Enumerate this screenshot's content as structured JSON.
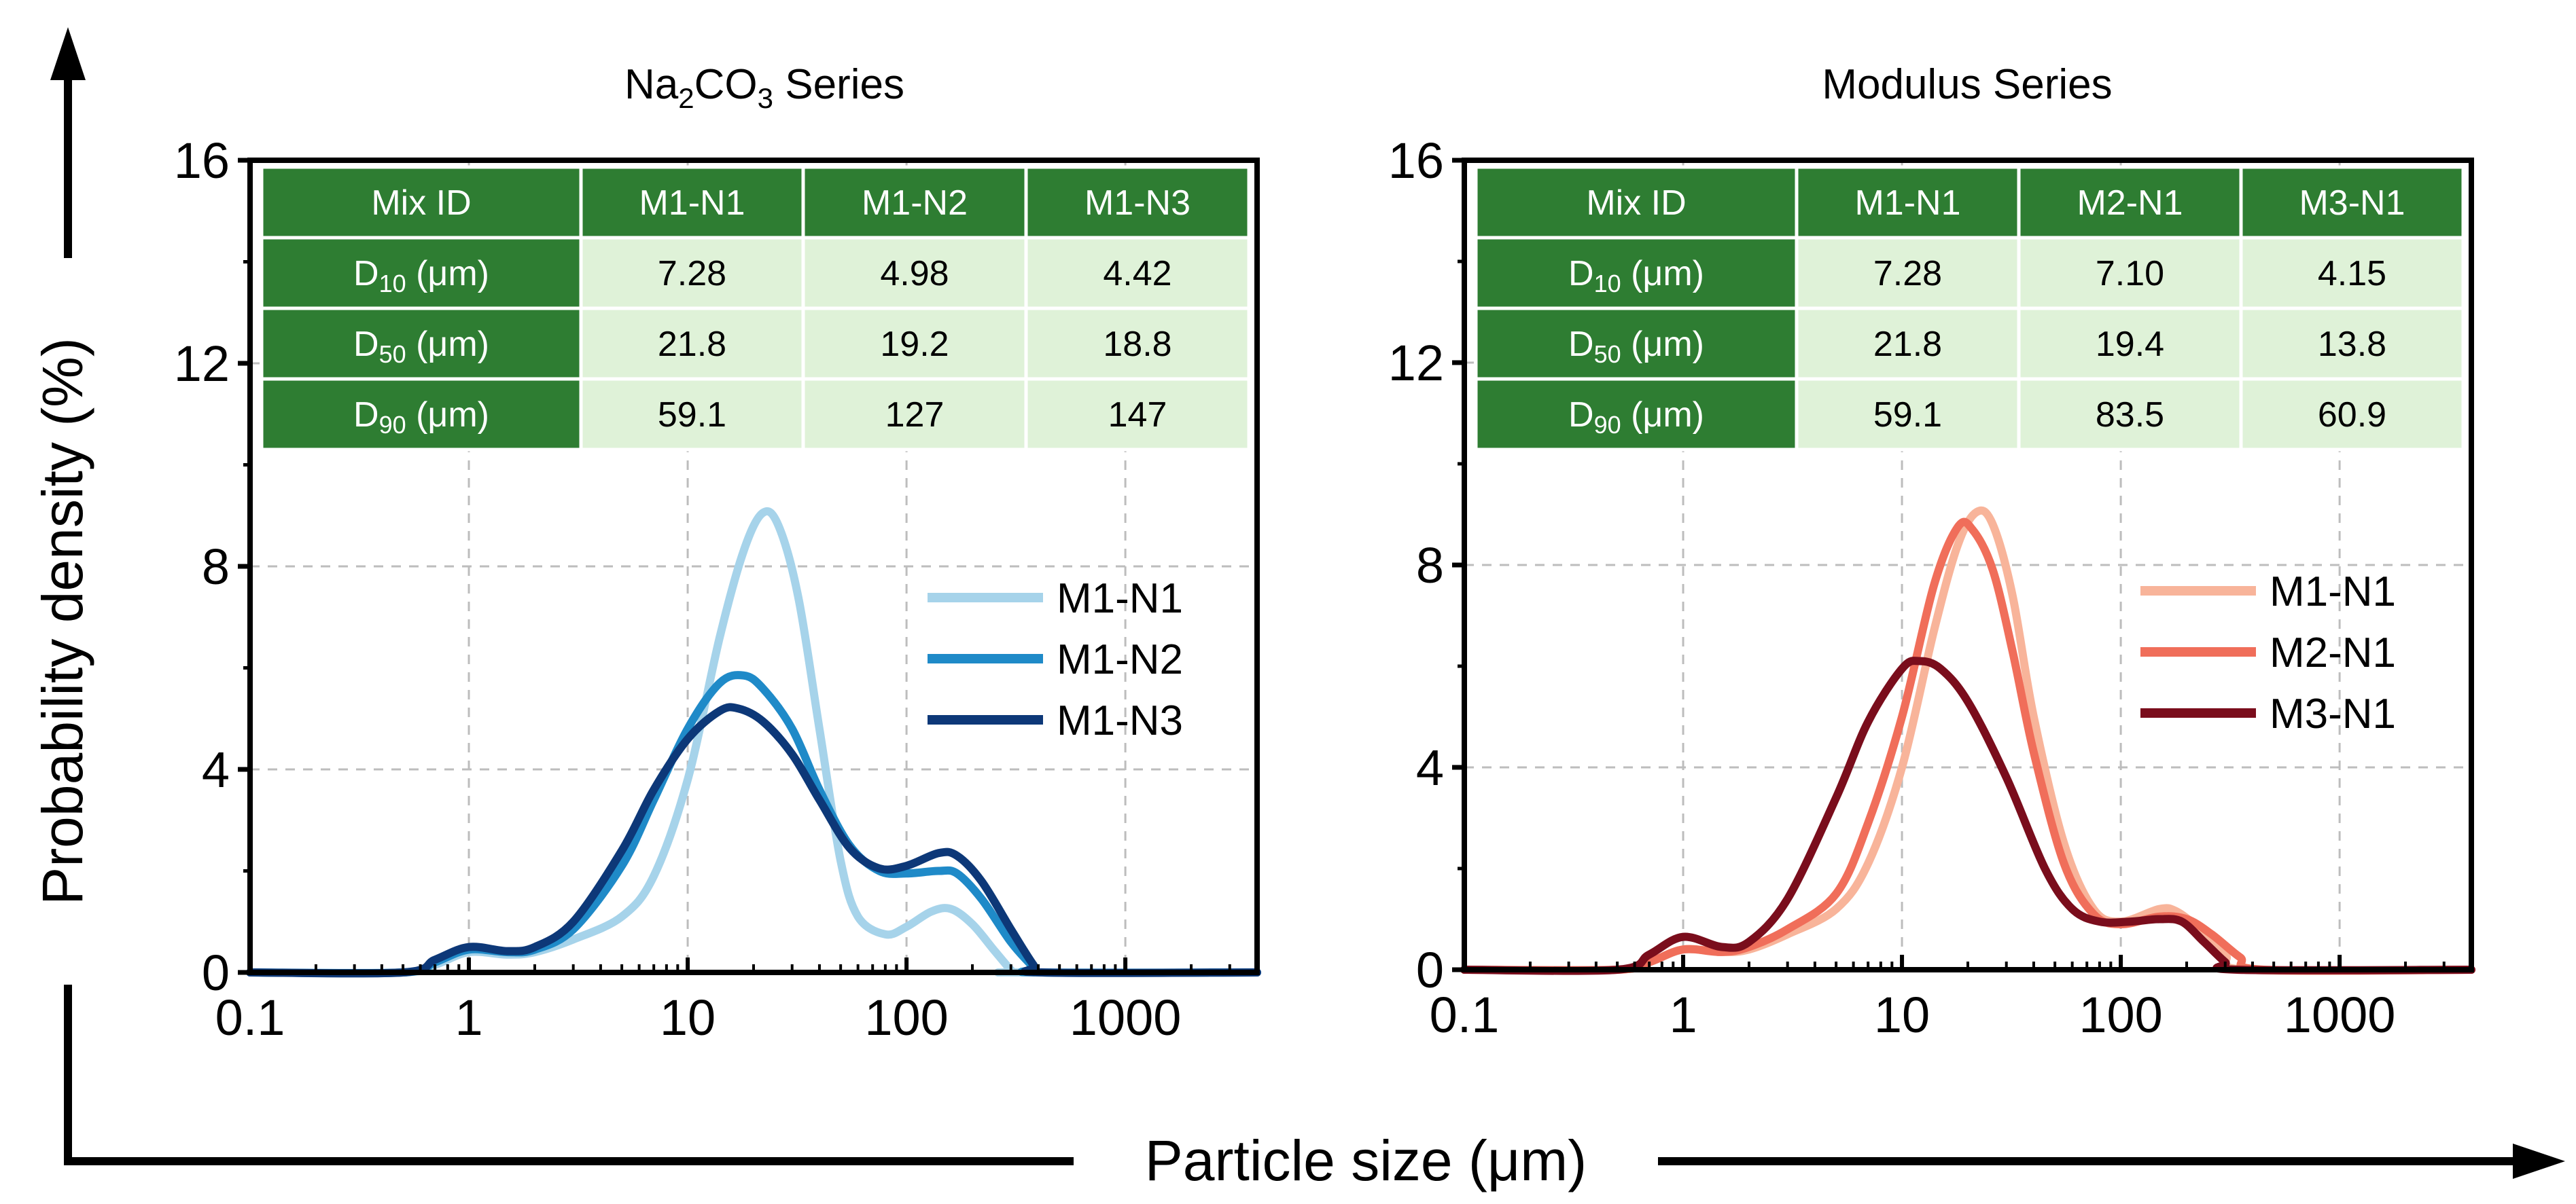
{
  "figure": {
    "y_axis_title": "Probability density (%)",
    "x_axis_title": "Particle size (μm)"
  },
  "colors": {
    "table_header_bg": "#2e7d32",
    "table_body_bg": "#dff2d8",
    "grid": "#bdbdbd"
  },
  "chart_data": [
    {
      "type": "line",
      "title": "Na2CO3 Series",
      "title_parts": {
        "prefix": "Na",
        "sub1": "2",
        "mid": "CO",
        "sub2": "3",
        "suffix": " Series"
      },
      "x_scale": "log",
      "xlim": [
        0.1,
        4000
      ],
      "ylim": [
        0,
        16
      ],
      "x_ticks": [
        "0.1",
        "1",
        "10",
        "100",
        "1000"
      ],
      "y_ticks": [
        "0",
        "4",
        "8",
        "12",
        "16"
      ],
      "grid": true,
      "legend_position": "right",
      "table": {
        "header": [
          "Mix ID",
          "M1-N1",
          "M1-N2",
          "M1-N3"
        ],
        "rows": [
          {
            "label_main": "D",
            "label_sub": "10",
            "label_unit": " (μm)",
            "values": [
              "7.28",
              "4.98",
              "4.42"
            ]
          },
          {
            "label_main": "D",
            "label_sub": "50",
            "label_unit": " (μm)",
            "values": [
              "21.8",
              "19.2",
              "18.8"
            ]
          },
          {
            "label_main": "D",
            "label_sub": "90",
            "label_unit": " (μm)",
            "values": [
              "59.1",
              "127",
              "147"
            ]
          }
        ]
      },
      "series": [
        {
          "name": "M1-N1",
          "color": "#a6d3ea",
          "points": [
            [
              0.1,
              0
            ],
            [
              0.5,
              0
            ],
            [
              0.7,
              0.15
            ],
            [
              1,
              0.4
            ],
            [
              1.5,
              0.35
            ],
            [
              2,
              0.4
            ],
            [
              3,
              0.65
            ],
            [
              5,
              1.1
            ],
            [
              7,
              1.9
            ],
            [
              10,
              3.8
            ],
            [
              14,
              6.6
            ],
            [
              18,
              8.3
            ],
            [
              22,
              9.05
            ],
            [
              26,
              8.8
            ],
            [
              32,
              7.4
            ],
            [
              40,
              4.8
            ],
            [
              50,
              2.2
            ],
            [
              60,
              1.1
            ],
            [
              80,
              0.75
            ],
            [
              100,
              0.9
            ],
            [
              130,
              1.2
            ],
            [
              160,
              1.25
            ],
            [
              200,
              0.95
            ],
            [
              250,
              0.45
            ],
            [
              300,
              0.05
            ],
            [
              320,
              0
            ],
            [
              4000,
              0
            ]
          ]
        },
        {
          "name": "M1-N2",
          "color": "#1f8ac8",
          "points": [
            [
              0.1,
              0
            ],
            [
              0.5,
              0
            ],
            [
              0.7,
              0.2
            ],
            [
              1,
              0.45
            ],
            [
              1.5,
              0.4
            ],
            [
              2,
              0.45
            ],
            [
              3,
              0.85
            ],
            [
              5,
              2.1
            ],
            [
              7,
              3.4
            ],
            [
              10,
              4.8
            ],
            [
              14,
              5.7
            ],
            [
              18,
              5.85
            ],
            [
              22,
              5.6
            ],
            [
              30,
              4.8
            ],
            [
              40,
              3.6
            ],
            [
              55,
              2.5
            ],
            [
              75,
              2.0
            ],
            [
              100,
              1.95
            ],
            [
              140,
              2.0
            ],
            [
              170,
              1.95
            ],
            [
              220,
              1.45
            ],
            [
              300,
              0.6
            ],
            [
              380,
              0.1
            ],
            [
              400,
              0
            ],
            [
              4000,
              0
            ]
          ]
        },
        {
          "name": "M1-N3",
          "color": "#0d3878",
          "points": [
            [
              0.1,
              0
            ],
            [
              0.5,
              0
            ],
            [
              0.7,
              0.25
            ],
            [
              1,
              0.5
            ],
            [
              1.5,
              0.42
            ],
            [
              2,
              0.5
            ],
            [
              3,
              1.0
            ],
            [
              5,
              2.4
            ],
            [
              7,
              3.6
            ],
            [
              10,
              4.6
            ],
            [
              14,
              5.15
            ],
            [
              17,
              5.2
            ],
            [
              22,
              4.95
            ],
            [
              30,
              4.3
            ],
            [
              40,
              3.4
            ],
            [
              55,
              2.45
            ],
            [
              75,
              2.05
            ],
            [
              100,
              2.1
            ],
            [
              140,
              2.35
            ],
            [
              170,
              2.3
            ],
            [
              220,
              1.8
            ],
            [
              300,
              0.85
            ],
            [
              380,
              0.15
            ],
            [
              420,
              0
            ],
            [
              4000,
              0
            ]
          ]
        }
      ]
    },
    {
      "type": "line",
      "title": "Modulus Series",
      "x_scale": "log",
      "xlim": [
        0.1,
        4000
      ],
      "ylim": [
        0,
        16
      ],
      "x_ticks": [
        "0.1",
        "1",
        "10",
        "100",
        "1000"
      ],
      "y_ticks": [
        "0",
        "4",
        "8",
        "12",
        "16"
      ],
      "grid": true,
      "legend_position": "right",
      "table": {
        "header": [
          "Mix ID",
          "M1-N1",
          "M2-N1",
          "M3-N1"
        ],
        "rows": [
          {
            "label_main": "D",
            "label_sub": "10",
            "label_unit": " (μm)",
            "values": [
              "7.28",
              "7.10",
              "4.15"
            ]
          },
          {
            "label_main": "D",
            "label_sub": "50",
            "label_unit": " (μm)",
            "values": [
              "21.8",
              "19.4",
              "13.8"
            ]
          },
          {
            "label_main": "D",
            "label_sub": "90",
            "label_unit": " (μm)",
            "values": [
              "59.1",
              "83.5",
              "60.9"
            ]
          }
        ]
      },
      "series": [
        {
          "name": "M1-N1",
          "color": "#f8b49a",
          "points": [
            [
              0.1,
              0
            ],
            [
              0.5,
              0
            ],
            [
              0.7,
              0.15
            ],
            [
              1,
              0.4
            ],
            [
              1.5,
              0.35
            ],
            [
              2,
              0.4
            ],
            [
              3,
              0.7
            ],
            [
              5,
              1.2
            ],
            [
              7,
              2.1
            ],
            [
              10,
              4.0
            ],
            [
              14,
              6.7
            ],
            [
              18,
              8.4
            ],
            [
              22,
              9.05
            ],
            [
              26,
              8.8
            ],
            [
              32,
              7.4
            ],
            [
              40,
              5.0
            ],
            [
              55,
              2.5
            ],
            [
              75,
              1.2
            ],
            [
              100,
              0.95
            ],
            [
              150,
              1.2
            ],
            [
              180,
              1.15
            ],
            [
              230,
              0.8
            ],
            [
              300,
              0.3
            ],
            [
              380,
              0
            ],
            [
              4000,
              0
            ]
          ]
        },
        {
          "name": "M2-N1",
          "color": "#f06e5a",
          "points": [
            [
              0.1,
              0
            ],
            [
              0.5,
              0
            ],
            [
              0.7,
              0.15
            ],
            [
              1,
              0.4
            ],
            [
              1.5,
              0.35
            ],
            [
              2,
              0.45
            ],
            [
              3,
              0.8
            ],
            [
              5,
              1.5
            ],
            [
              7,
              2.9
            ],
            [
              10,
              5.0
            ],
            [
              14,
              7.6
            ],
            [
              18,
              8.75
            ],
            [
              21,
              8.7
            ],
            [
              26,
              7.9
            ],
            [
              32,
              6.3
            ],
            [
              40,
              4.3
            ],
            [
              55,
              2.1
            ],
            [
              75,
              1.1
            ],
            [
              100,
              0.9
            ],
            [
              150,
              1.05
            ],
            [
              200,
              1.0
            ],
            [
              260,
              0.7
            ],
            [
              350,
              0.25
            ],
            [
              450,
              0
            ],
            [
              4000,
              0
            ]
          ]
        },
        {
          "name": "M3-N1",
          "color": "#7a0d1c",
          "points": [
            [
              0.1,
              0
            ],
            [
              0.5,
              0
            ],
            [
              0.7,
              0.3
            ],
            [
              1,
              0.65
            ],
            [
              1.5,
              0.45
            ],
            [
              2,
              0.55
            ],
            [
              3,
              1.4
            ],
            [
              5,
              3.4
            ],
            [
              7,
              4.9
            ],
            [
              10,
              5.95
            ],
            [
              12,
              6.1
            ],
            [
              15,
              5.95
            ],
            [
              20,
              5.3
            ],
            [
              30,
              3.8
            ],
            [
              45,
              2.0
            ],
            [
              60,
              1.2
            ],
            [
              80,
              0.95
            ],
            [
              110,
              0.95
            ],
            [
              150,
              1.0
            ],
            [
              190,
              0.95
            ],
            [
              240,
              0.55
            ],
            [
              300,
              0.15
            ],
            [
              340,
              0
            ],
            [
              4000,
              0
            ]
          ]
        }
      ]
    }
  ]
}
